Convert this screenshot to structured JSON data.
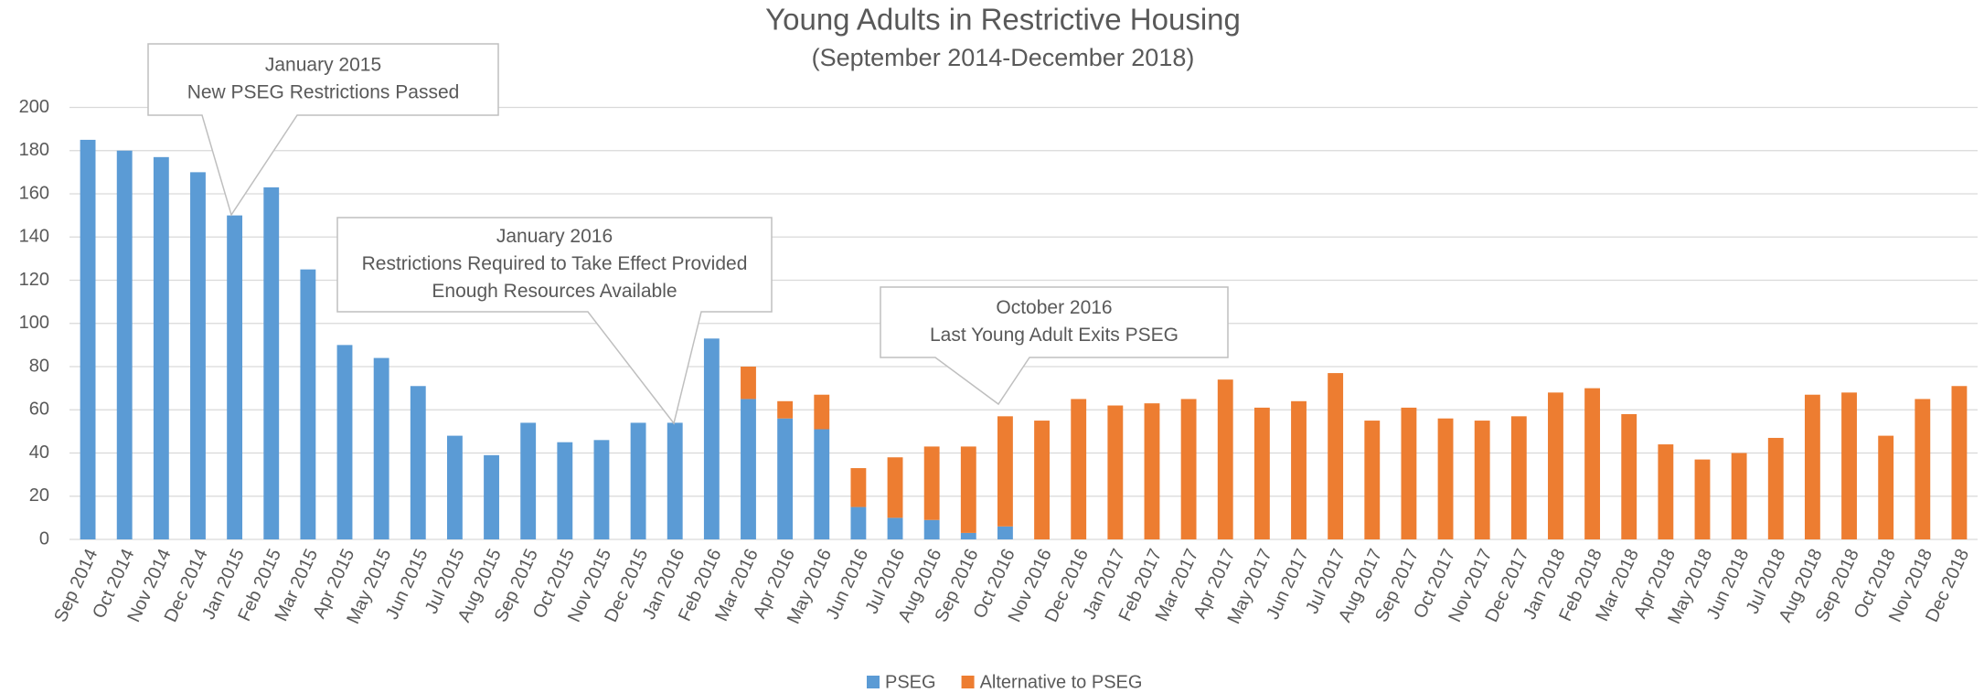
{
  "chart_data": {
    "type": "bar",
    "stacked": true,
    "title": "Young Adults in Restrictive Housing",
    "subtitle": "(September 2014-December 2018)",
    "categories": [
      "Sep 2014",
      "Oct 2014",
      "Nov 2014",
      "Dec 2014",
      "Jan 2015",
      "Feb 2015",
      "Mar 2015",
      "Apr 2015",
      "May 2015",
      "Jun 2015",
      "Jul 2015",
      "Aug 2015",
      "Sep 2015",
      "Oct 2015",
      "Nov 2015",
      "Dec 2015",
      "Jan 2016",
      "Feb 2016",
      "Mar 2016",
      "Apr 2016",
      "May 2016",
      "Jun 2016",
      "Jul 2016",
      "Aug 2016",
      "Sep 2016",
      "Oct 2016",
      "Nov 2016",
      "Dec 2016",
      "Jan 2017",
      "Feb 2017",
      "Mar 2017",
      "Apr 2017",
      "May 2017",
      "Jun 2017",
      "Jul 2017",
      "Aug 2017",
      "Sep 2017",
      "Oct 2017",
      "Nov 2017",
      "Dec 2017",
      "Jan 2018",
      "Feb 2018",
      "Mar 2018",
      "Apr 2018",
      "May 2018",
      "Jun 2018",
      "Jul 2018",
      "Aug 2018",
      "Sep 2018",
      "Oct 2018",
      "Nov 2018",
      "Dec 2018"
    ],
    "series": [
      {
        "name": "PSEG",
        "color": "#5b9bd5",
        "values": [
          185,
          180,
          177,
          170,
          150,
          163,
          125,
          90,
          84,
          71,
          48,
          39,
          54,
          45,
          46,
          54,
          54,
          93,
          65,
          56,
          51,
          15,
          10,
          9,
          3,
          6,
          0,
          0,
          0,
          0,
          0,
          0,
          0,
          0,
          0,
          0,
          0,
          0,
          0,
          0,
          0,
          0,
          0,
          0,
          0,
          0,
          0,
          0,
          0,
          0,
          0,
          0
        ]
      },
      {
        "name": "Alternative to PSEG",
        "color": "#ed7d31",
        "values": [
          0,
          0,
          0,
          0,
          0,
          0,
          0,
          0,
          0,
          0,
          0,
          0,
          0,
          0,
          0,
          0,
          0,
          0,
          15,
          8,
          16,
          18,
          28,
          34,
          40,
          51,
          55,
          65,
          62,
          63,
          65,
          74,
          61,
          64,
          77,
          55,
          61,
          56,
          55,
          57,
          68,
          70,
          58,
          44,
          37,
          40,
          47,
          67,
          68,
          48,
          65,
          71
        ]
      }
    ],
    "ylim": [
      0,
      200
    ],
    "yticks": [
      0,
      20,
      40,
      60,
      80,
      100,
      120,
      140,
      160,
      180,
      200
    ],
    "grid": true,
    "annotations": [
      {
        "lines": [
          "January 2015",
          "New PSEG Restrictions Passed"
        ]
      },
      {
        "lines": [
          "January 2016",
          "Restrictions Required to Take Effect Provided",
          "Enough Resources Available"
        ]
      },
      {
        "lines": [
          "October 2016",
          "Last Young Adult Exits PSEG"
        ]
      }
    ]
  }
}
